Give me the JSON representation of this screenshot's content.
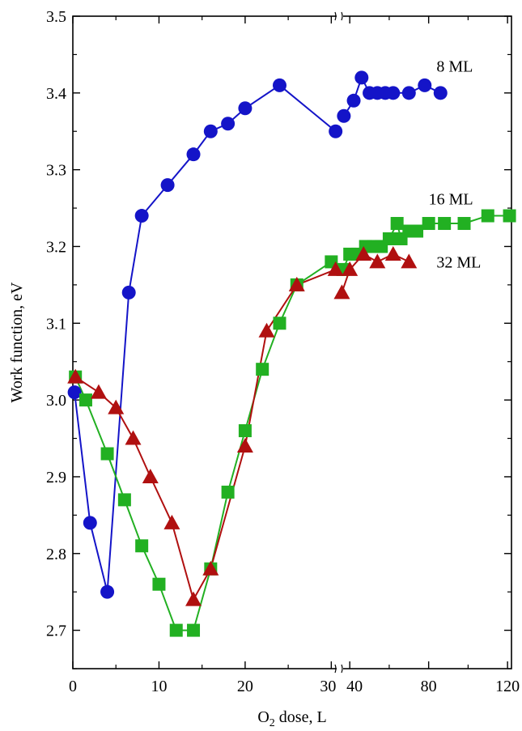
{
  "chart_data": {
    "type": "line",
    "xlabel_main": "O",
    "xlabel_sub": "2",
    "xlabel_rest": " dose, L",
    "ylabel": "Work function, eV",
    "ylim": [
      2.65,
      3.5
    ],
    "x_axis_broken": true,
    "x_segments": [
      {
        "range": [
          0,
          31
        ],
        "ticks": [
          0,
          10,
          20,
          30
        ]
      },
      {
        "range": [
          35,
          122
        ],
        "ticks": [
          40,
          80,
          120
        ]
      }
    ],
    "x_tick_labels": [
      "0",
      "10",
      "20",
      "30",
      "40",
      "80",
      "120"
    ],
    "y_ticks": [
      2.7,
      2.8,
      2.9,
      3.0,
      3.1,
      3.2,
      3.3,
      3.4,
      3.5
    ],
    "y_tick_labels": [
      "2.7",
      "2.8",
      "2.9",
      "3.0",
      "3.1",
      "3.2",
      "3.3",
      "3.4",
      "3.5"
    ],
    "grid": false,
    "series": [
      {
        "name": "8 ML",
        "color": "#1414c8",
        "marker": "circle",
        "segments": [
          {
            "x": [
              0.2,
              2,
              4,
              6.5,
              8,
              11,
              14,
              16,
              18,
              20,
              24,
              30.5
            ],
            "y": [
              3.01,
              2.84,
              2.75,
              3.14,
              3.24,
              3.28,
              3.32,
              3.35,
              3.36,
              3.38,
              3.41,
              3.35
            ]
          },
          {
            "x": [
              37,
              42,
              46,
              50,
              54,
              58,
              62,
              70,
              78,
              86
            ],
            "y": [
              3.37,
              3.39,
              3.42,
              3.4,
              3.4,
              3.4,
              3.4,
              3.4,
              3.41,
              3.4
            ]
          }
        ]
      },
      {
        "name": "16 ML",
        "color": "#22b022",
        "marker": "square",
        "segments": [
          {
            "x": [
              0.3,
              1.5,
              4,
              6,
              8,
              10,
              12,
              14,
              16,
              18,
              20,
              22,
              24,
              26,
              30
            ],
            "y": [
              3.03,
              3.0,
              2.93,
              2.87,
              2.81,
              2.76,
              2.7,
              2.7,
              2.78,
              2.88,
              2.96,
              3.04,
              3.1,
              3.15,
              3.18
            ]
          },
          {
            "x": [
              36.5,
              40,
              44,
              48,
              52,
              56,
              60,
              64,
              66,
              70,
              74,
              80,
              88,
              98,
              110,
              121
            ],
            "y": [
              3.17,
              3.19,
              3.19,
              3.2,
              3.2,
              3.2,
              3.21,
              3.23,
              3.21,
              3.22,
              3.22,
              3.23,
              3.23,
              3.23,
              3.24,
              3.24
            ]
          }
        ]
      },
      {
        "name": "32 ML",
        "color": "#b01010",
        "marker": "triangle",
        "segments": [
          {
            "x": [
              0.3,
              3,
              5,
              7,
              9,
              11.5,
              14,
              16,
              20,
              22.5,
              26,
              30.5
            ],
            "y": [
              3.03,
              3.01,
              2.99,
              2.95,
              2.9,
              2.84,
              2.74,
              2.78,
              2.94,
              3.09,
              3.15,
              3.17
            ]
          },
          {
            "x": [
              36,
              40,
              47,
              54,
              62,
              70
            ],
            "y": [
              3.14,
              3.17,
              3.19,
              3.18,
              3.19,
              3.18
            ]
          }
        ]
      }
    ]
  }
}
